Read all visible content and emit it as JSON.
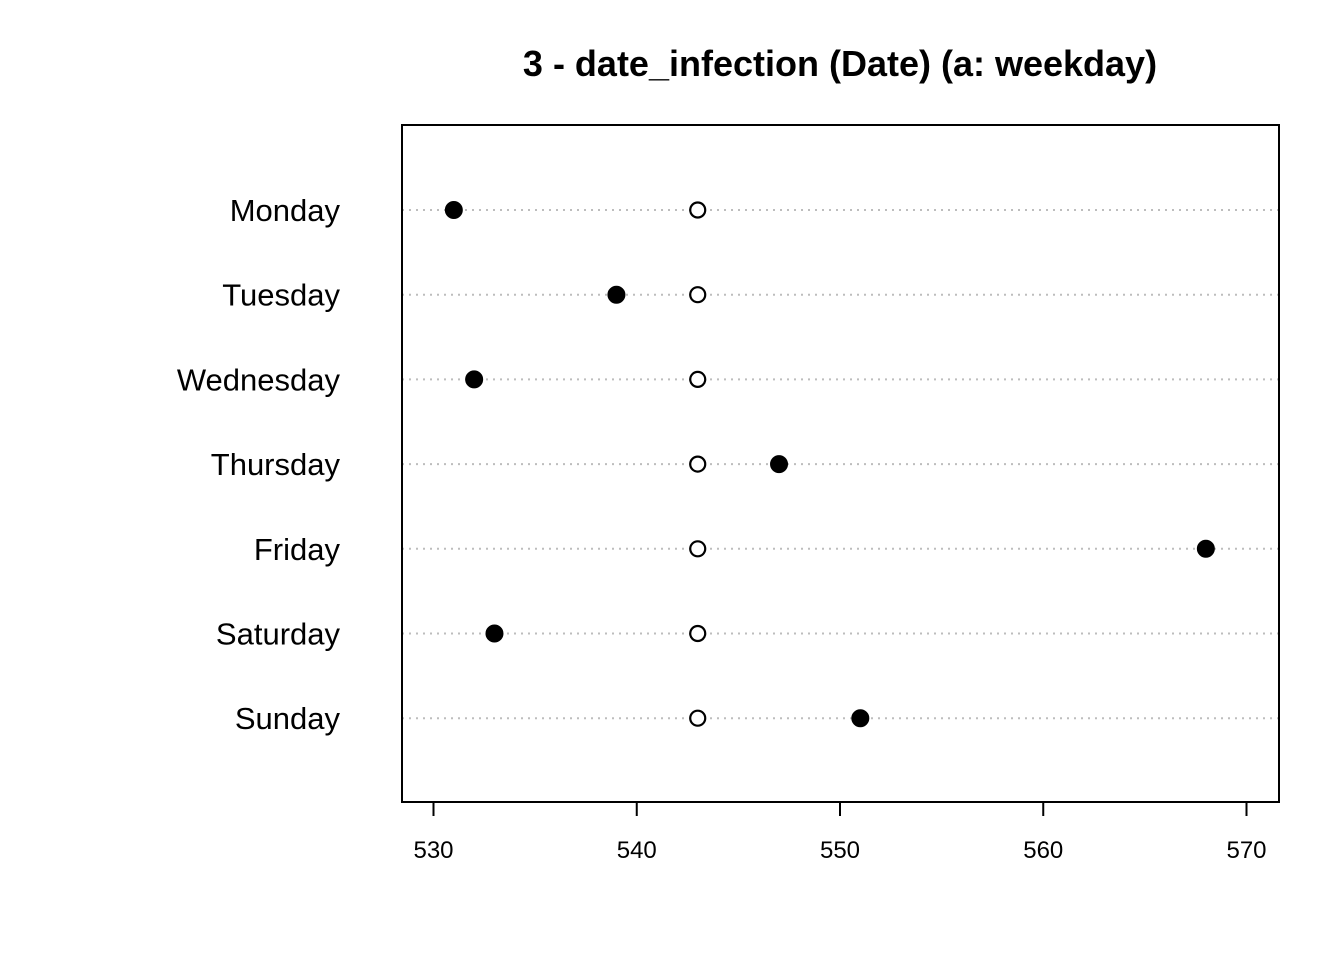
{
  "chart_data": {
    "type": "scatter",
    "subtype": "dotchart",
    "title": "3 - date_infection (Date) (a: weekday)",
    "xlabel": "",
    "ylabel": "",
    "categories": [
      "Monday",
      "Tuesday",
      "Wednesday",
      "Thursday",
      "Friday",
      "Saturday",
      "Sunday"
    ],
    "series": [
      {
        "marker": "filled-circle",
        "color": "#000000",
        "values": [
          531,
          539,
          532,
          547,
          568,
          533,
          551
        ]
      },
      {
        "marker": "open-circle",
        "color": "#000000",
        "values": [
          543,
          543,
          543,
          543,
          543,
          543,
          543
        ]
      }
    ],
    "xlim": [
      528.5,
      571.5
    ],
    "xticks": [
      530,
      540,
      550,
      560,
      570
    ],
    "gridlines": "horizontal-dotted",
    "legend": "none"
  }
}
